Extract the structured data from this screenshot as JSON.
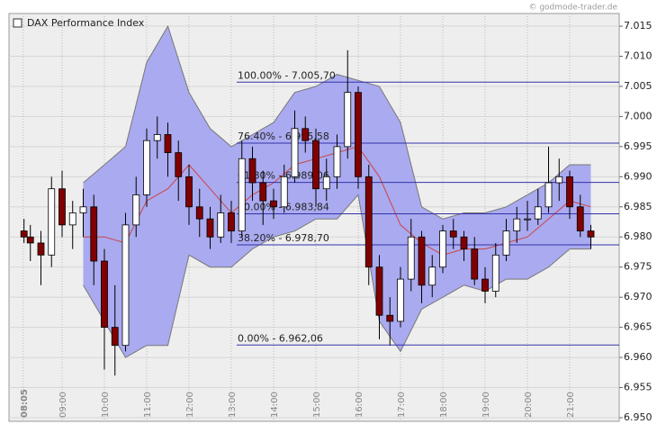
{
  "chart_data": {
    "type": "candlestick",
    "title": "DAX Performance Index",
    "source": "© godmode-trader.de",
    "x": [
      8.1,
      8.25,
      8.5,
      8.75,
      9.0,
      9.25,
      9.5,
      9.75,
      10.0,
      10.25,
      10.5,
      10.75,
      11.0,
      11.25,
      11.5,
      11.75,
      12.0,
      12.25,
      12.5,
      12.75,
      13.0,
      13.25,
      13.5,
      13.75,
      14.0,
      14.25,
      14.5,
      14.75,
      15.0,
      15.25,
      15.5,
      15.75,
      16.0,
      16.25,
      16.5,
      16.75,
      17.0,
      17.25,
      17.5,
      17.75,
      18.0,
      18.25,
      18.5,
      18.75,
      19.0,
      19.25,
      19.5,
      19.75,
      20.0,
      20.25,
      20.5,
      20.75,
      21.0,
      21.25,
      21.5
    ],
    "open": [
      6981,
      6980,
      6979,
      6977,
      6988,
      6982,
      6984,
      6985,
      6976,
      6965,
      6962,
      6982,
      6987,
      6996,
      6997,
      6994,
      6990,
      6985,
      6983,
      6980,
      6984,
      6981,
      6993,
      6989,
      6986,
      6985,
      6990,
      6998,
      6996,
      6988,
      6990,
      6995,
      7004,
      6990,
      6975,
      6967,
      6966,
      6973,
      6980,
      6972,
      6975,
      6981,
      6980,
      6978,
      6973,
      6971,
      6977,
      6981,
      6983,
      6983,
      6985,
      6989,
      6990,
      6985,
      6981
    ],
    "high": [
      6983,
      6982,
      6981,
      6990,
      6991,
      6986,
      6988,
      6987,
      6978,
      6972,
      6984,
      6990,
      6998,
      7000,
      6999,
      6996,
      6992,
      6988,
      6985,
      6987,
      6986,
      6996,
      6995,
      6991,
      6988,
      6992,
      7001,
      7000,
      6998,
      6993,
      6997,
      7011,
      7005,
      6992,
      6977,
      6970,
      6975,
      6983,
      6981,
      6977,
      6982,
      6983,
      6981,
      6980,
      6975,
      6979,
      6983,
      6985,
      6986,
      6988,
      6995,
      6993,
      6991,
      6987,
      6982
    ],
    "low": [
      6979,
      6976,
      6972,
      6975,
      6980,
      6978,
      6980,
      6972,
      6958,
      6957,
      6961,
      6980,
      6985,
      6993,
      6990,
      6986,
      6982,
      6980,
      6978,
      6979,
      6979,
      6980,
      6986,
      6982,
      6983,
      6984,
      6989,
      6994,
      6985,
      6986,
      6988,
      6993,
      6988,
      6972,
      6963,
      6962,
      6965,
      6971,
      6969,
      6970,
      6974,
      6978,
      6976,
      6972,
      6969,
      6970,
      6976,
      6979,
      6981,
      6982,
      6984,
      6986,
      6983,
      6980,
      6978
    ],
    "close": [
      6980,
      6979,
      6977,
      6988,
      6982,
      6984,
      6985,
      6976,
      6965,
      6962,
      6982,
      6987,
      6996,
      6997,
      6994,
      6990,
      6985,
      6983,
      6980,
      6984,
      6981,
      6993,
      6989,
      6986,
      6985,
      6990,
      6998,
      6996,
      6988,
      6990,
      6995,
      7004,
      6990,
      6975,
      6967,
      6966,
      6973,
      6980,
      6972,
      6975,
      6981,
      6980,
      6978,
      6973,
      6971,
      6977,
      6981,
      6983,
      6983,
      6985,
      6989,
      6990,
      6985,
      6981,
      6980
    ],
    "up_color": "#ffffff",
    "down_color": "#800000",
    "bands": {
      "x": [
        9.5,
        10.0,
        10.5,
        11.0,
        11.5,
        12.0,
        12.5,
        13.0,
        13.5,
        14.0,
        14.5,
        15.0,
        15.5,
        16.0,
        16.5,
        17.0,
        17.5,
        18.0,
        18.5,
        19.0,
        19.5,
        20.0,
        20.5,
        21.0,
        21.5
      ],
      "upper": [
        6989,
        6992,
        6995,
        7009,
        7015,
        7004,
        6998,
        6995,
        6997,
        6999,
        7004,
        7005,
        7007,
        7006,
        7005,
        6999,
        6985,
        6983,
        6984,
        6984,
        6985,
        6987,
        6989,
        6992,
        6992
      ],
      "middle": [
        6980,
        6980,
        6979,
        6986,
        6988,
        6992,
        6988,
        6984,
        6987,
        6989,
        6992,
        6993,
        6994,
        6995,
        6990,
        6982,
        6979,
        6977,
        6978,
        6978,
        6979,
        6980,
        6983,
        6986,
        6985
      ],
      "lower": [
        6972,
        6966,
        6960,
        6962,
        6962,
        6977,
        6975,
        6975,
        6978,
        6980,
        6981,
        6983,
        6983,
        6987,
        6966,
        6961,
        6968,
        6970,
        6972,
        6971,
        6973,
        6973,
        6975,
        6978,
        6978
      ],
      "fill": "#aaaaf0",
      "line_color": "#777777",
      "middle_color": "#cc4444"
    },
    "fib_levels": [
      {
        "label": "100.00% - 7.005,70",
        "value": 7005.7
      },
      {
        "label": "76.40% - 6.995,58",
        "value": 6995.58
      },
      {
        "label": "61.80% - 6.989,06",
        "value": 6989.06
      },
      {
        "label": "50.00% - 6.983,84",
        "value": 6983.84
      },
      {
        "label": "38.20% - 6.978,70",
        "value": 6978.7
      },
      {
        "label": "0.00% - 6.962,06",
        "value": 6962.06
      }
    ],
    "fib_color": "#3333aa",
    "xlim": [
      7.745,
      22.17
    ],
    "xticks": [
      {
        "value": 8.0833,
        "label": "08:05"
      },
      {
        "value": 9,
        "label": "09:00"
      },
      {
        "value": 10,
        "label": "10:00"
      },
      {
        "value": 11,
        "label": "11:00"
      },
      {
        "value": 12,
        "label": "12:00"
      },
      {
        "value": 13,
        "label": "13:00"
      },
      {
        "value": 14,
        "label": "14:00"
      },
      {
        "value": 15,
        "label": "15:00"
      },
      {
        "value": 16,
        "label": "16:00"
      },
      {
        "value": 17,
        "label": "17:00"
      },
      {
        "value": 18,
        "label": "18:00"
      },
      {
        "value": 19,
        "label": "19:00"
      },
      {
        "value": 20,
        "label": "20:00"
      },
      {
        "value": 21,
        "label": "21:00"
      }
    ],
    "ylim": [
      6949.4,
      7017.1
    ],
    "yticks": [
      {
        "value": 6950,
        "label": "6.950"
      },
      {
        "value": 6955,
        "label": "6.955"
      },
      {
        "value": 6960,
        "label": "6.960"
      },
      {
        "value": 6965,
        "label": "6.965"
      },
      {
        "value": 6970,
        "label": "6.970"
      },
      {
        "value": 6975,
        "label": "6.975"
      },
      {
        "value": 6980,
        "label": "6.980"
      },
      {
        "value": 6985,
        "label": "6.985"
      },
      {
        "value": 6990,
        "label": "6.990"
      },
      {
        "value": 6995,
        "label": "6.995"
      },
      {
        "value": 7000,
        "label": "7.000"
      },
      {
        "value": 7005,
        "label": "7.005"
      },
      {
        "value": 7010,
        "label": "7.010"
      },
      {
        "value": 7015,
        "label": "7.015"
      }
    ],
    "grid": true
  }
}
